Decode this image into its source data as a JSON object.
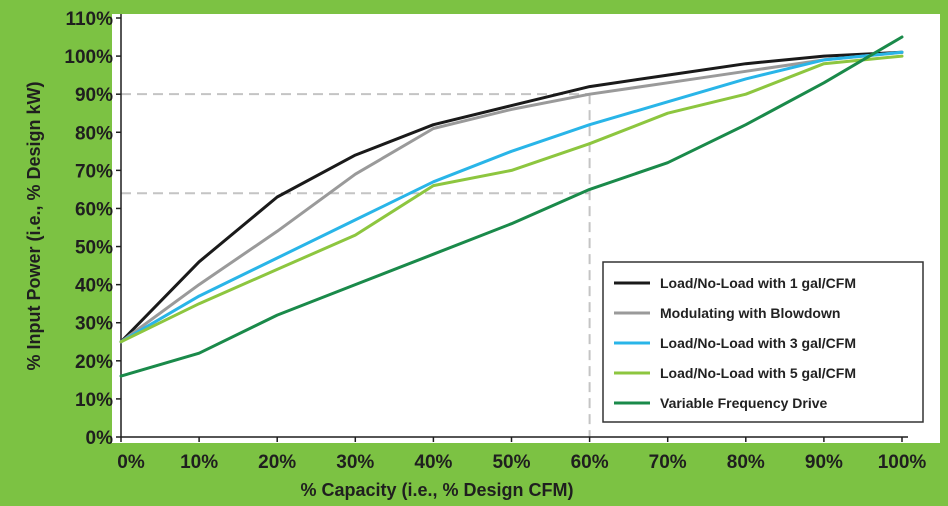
{
  "chart_data": {
    "type": "line",
    "title": "",
    "xlabel": "% Capacity (i.e., % Design CFM)",
    "ylabel": "% Input Power (i.e., % Design kW)",
    "x": [
      0,
      10,
      20,
      30,
      40,
      50,
      60,
      70,
      80,
      90,
      100
    ],
    "x_tick_labels": [
      "0%",
      "10%",
      "20%",
      "30%",
      "40%",
      "50%",
      "60%",
      "70%",
      "80%",
      "90%",
      "100%"
    ],
    "y_tick_labels": [
      "0%",
      "10%",
      "20%",
      "30%",
      "40%",
      "50%",
      "60%",
      "70%",
      "80%",
      "90%",
      "100%",
      "110%"
    ],
    "xlim": [
      0,
      100
    ],
    "ylim": [
      0,
      110
    ],
    "grid": false,
    "legend_position": "bottom-right",
    "series": [
      {
        "name": "Load/No-Load with 1 gal/CFM",
        "color": "#1a1a1a",
        "values": [
          25,
          46,
          63,
          74,
          82,
          87,
          92,
          95,
          98,
          100,
          101
        ]
      },
      {
        "name": "Modulating with Blowdown",
        "color": "#9a9a9a",
        "values": [
          25,
          40,
          54,
          69,
          81,
          86,
          90,
          93,
          96,
          99,
          101
        ]
      },
      {
        "name": "Load/No-Load with 3 gal/CFM",
        "color": "#29b5e8",
        "values": [
          25,
          37,
          47,
          57,
          67,
          75,
          82,
          88,
          94,
          99,
          101
        ]
      },
      {
        "name": "Load/No-Load with 5 gal/CFM",
        "color": "#8dc63f",
        "values": [
          25,
          35,
          44,
          53,
          66,
          70,
          77,
          85,
          90,
          98,
          100
        ]
      },
      {
        "name": "Variable Frequency Drive",
        "color": "#1a8a4a",
        "values": [
          16,
          22,
          32,
          40,
          48,
          56,
          65,
          72,
          82,
          93,
          105
        ]
      }
    ],
    "reference_lines": {
      "x": 60,
      "y": [
        90,
        64
      ]
    }
  }
}
